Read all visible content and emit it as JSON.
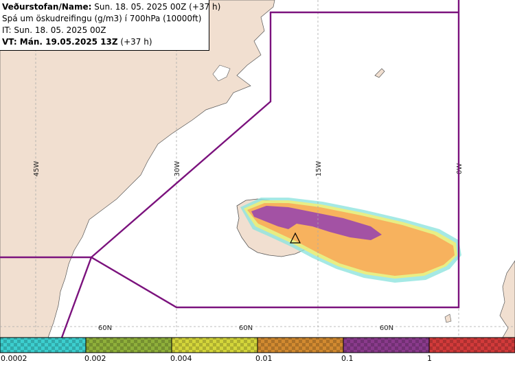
{
  "header": {
    "line1_bold": "Veðurstofan/Name:",
    "line1_rest": " Sun. 18. 05. 2025 00Z (+37 h)",
    "line2": "Spá um öskudreifingu (g/m3) í 700hPa (10000ft)",
    "line3": "IT: Sun. 18. 05. 2025 00Z",
    "line4_bold": "VT: Mán. 19.05.2025 13Z",
    "line4_rest": " (+37 h)"
  },
  "map": {
    "meridian_labels": [
      "45W",
      "30W",
      "15W",
      "0W"
    ],
    "parallel_labels": [
      "60N",
      "60N",
      "60N"
    ],
    "colors": {
      "land": "#f1dfd0",
      "sea": "#ffffff",
      "boundary": "#7b127d",
      "ash_purple": "#a352a4",
      "ash_orange": "#f7b25e",
      "ash_yellow": "#f3ef73",
      "ash_cyan": "#8fe3df"
    }
  },
  "legend": {
    "labels": [
      "0.0002",
      "0.002",
      "0.004",
      "0.01",
      "0.1",
      "1"
    ],
    "colors": [
      "#3ccfcf",
      "#8fb03a",
      "#d4d63a",
      "#d28a30",
      "#8a3a8c",
      "#d23a3a"
    ]
  }
}
